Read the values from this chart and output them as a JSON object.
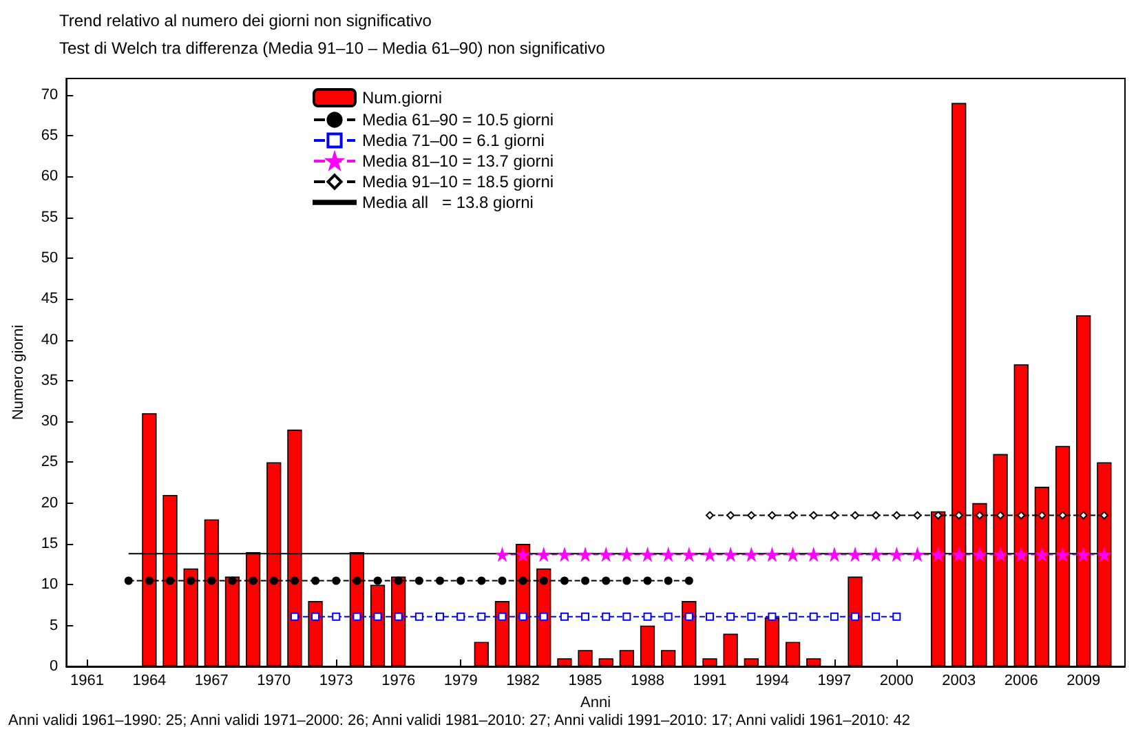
{
  "chart_data": {
    "type": "bar",
    "title": "Trend relativo al numero dei giorni non significativo",
    "subtitle": "Test di Welch tra differenza (Media 91–10 – Media 61–90) non significativo",
    "xlabel": "Anni",
    "ylabel": "Numero giorni",
    "xlim": [
      1960,
      2011
    ],
    "xticks": [
      1961,
      1964,
      1967,
      1970,
      1973,
      1976,
      1979,
      1982,
      1985,
      1988,
      1991,
      1994,
      1997,
      2000,
      2003,
      2006,
      2009
    ],
    "ylim": [
      0,
      72
    ],
    "yticks": [
      0,
      5,
      10,
      15,
      20,
      25,
      30,
      35,
      40,
      45,
      50,
      55,
      60,
      65,
      70
    ],
    "legend": "top",
    "grid": false,
    "series": [
      {
        "name": "Num.giorni",
        "color": "#ff0000",
        "x": [
          1963,
          1964,
          1965,
          1966,
          1967,
          1968,
          1969,
          1970,
          1971,
          1972,
          1973,
          1974,
          1975,
          1976,
          1977,
          1978,
          1979,
          1980,
          1981,
          1982,
          1983,
          1984,
          1985,
          1986,
          1987,
          1988,
          1989,
          1990,
          1991,
          1992,
          1993,
          1994,
          1995,
          1996,
          1997,
          1998,
          1999,
          2000,
          2001,
          2002,
          2003,
          2004,
          2005,
          2006,
          2007,
          2008,
          2009,
          2010
        ],
        "values": [
          0,
          31,
          21,
          12,
          18,
          11,
          14,
          25,
          29,
          8,
          0,
          14,
          10,
          11,
          0,
          0,
          0,
          3,
          8,
          15,
          12,
          1,
          2,
          1,
          2,
          5,
          2,
          8,
          1,
          4,
          1,
          6,
          3,
          1,
          0,
          11,
          0,
          0,
          0,
          19,
          69,
          20,
          26,
          37,
          22,
          27,
          43,
          25
        ]
      },
      {
        "name": "Media 61–90 = 10.5 giorni",
        "type": "line",
        "color": "#000000",
        "marker": "circle",
        "line_style": "dashed",
        "x": [
          1963,
          1964,
          1965,
          1966,
          1967,
          1968,
          1969,
          1970,
          1971,
          1972,
          1973,
          1974,
          1975,
          1976,
          1977,
          1978,
          1979,
          1980,
          1981,
          1982,
          1983,
          1984,
          1985,
          1986,
          1987,
          1988,
          1989,
          1990
        ],
        "values": [
          10.5,
          10.5,
          10.5,
          10.5,
          10.5,
          10.5,
          10.5,
          10.5,
          10.5,
          10.5,
          10.5,
          10.5,
          10.5,
          10.5,
          10.5,
          10.5,
          10.5,
          10.5,
          10.5,
          10.5,
          10.5,
          10.5,
          10.5,
          10.5,
          10.5,
          10.5,
          10.5,
          10.5
        ]
      },
      {
        "name": "Media 71–00 = 6.1 giorni",
        "type": "line",
        "color": "#0000ff",
        "marker": "square",
        "line_style": "dashed",
        "x": [
          1971,
          1972,
          1973,
          1974,
          1975,
          1976,
          1977,
          1978,
          1979,
          1980,
          1981,
          1982,
          1983,
          1984,
          1985,
          1986,
          1987,
          1988,
          1989,
          1990,
          1991,
          1992,
          1993,
          1994,
          1995,
          1996,
          1997,
          1998,
          1999,
          2000
        ],
        "values": [
          6.1,
          6.1,
          6.1,
          6.1,
          6.1,
          6.1,
          6.1,
          6.1,
          6.1,
          6.1,
          6.1,
          6.1,
          6.1,
          6.1,
          6.1,
          6.1,
          6.1,
          6.1,
          6.1,
          6.1,
          6.1,
          6.1,
          6.1,
          6.1,
          6.1,
          6.1,
          6.1,
          6.1,
          6.1,
          6.1
        ]
      },
      {
        "name": "Media 81–10 = 13.7 giorni",
        "type": "line",
        "color": "#ff00ff",
        "marker": "star",
        "line_style": "dashed",
        "x": [
          1981,
          1982,
          1983,
          1984,
          1985,
          1986,
          1987,
          1988,
          1989,
          1990,
          1991,
          1992,
          1993,
          1994,
          1995,
          1996,
          1997,
          1998,
          1999,
          2000,
          2001,
          2002,
          2003,
          2004,
          2005,
          2006,
          2007,
          2008,
          2009,
          2010
        ],
        "values": [
          13.7,
          13.7,
          13.7,
          13.7,
          13.7,
          13.7,
          13.7,
          13.7,
          13.7,
          13.7,
          13.7,
          13.7,
          13.7,
          13.7,
          13.7,
          13.7,
          13.7,
          13.7,
          13.7,
          13.7,
          13.7,
          13.7,
          13.7,
          13.7,
          13.7,
          13.7,
          13.7,
          13.7,
          13.7,
          13.7
        ]
      },
      {
        "name": "Media 91–10 = 18.5 giorni",
        "type": "line",
        "color": "#000000",
        "marker": "diamond",
        "line_style": "dashed",
        "x": [
          1991,
          1992,
          1993,
          1994,
          1995,
          1996,
          1997,
          1998,
          1999,
          2000,
          2001,
          2002,
          2003,
          2004,
          2005,
          2006,
          2007,
          2008,
          2009,
          2010
        ],
        "values": [
          18.5,
          18.5,
          18.5,
          18.5,
          18.5,
          18.5,
          18.5,
          18.5,
          18.5,
          18.5,
          18.5,
          18.5,
          18.5,
          18.5,
          18.5,
          18.5,
          18.5,
          18.5,
          18.5,
          18.5
        ]
      },
      {
        "name": "Media all   = 13.8 giorni",
        "type": "line",
        "color": "#000000",
        "marker": "none",
        "line_style": "solid",
        "x": [
          1963,
          2010
        ],
        "values": [
          13.8,
          13.8
        ]
      }
    ],
    "annotations": [
      "Anni validi 1961–1990: 25; Anni validi 1971–2000: 26; Anni validi 1981–2010: 27; Anni validi 1991–2010: 17; Anni validi 1961–2010: 42"
    ]
  }
}
